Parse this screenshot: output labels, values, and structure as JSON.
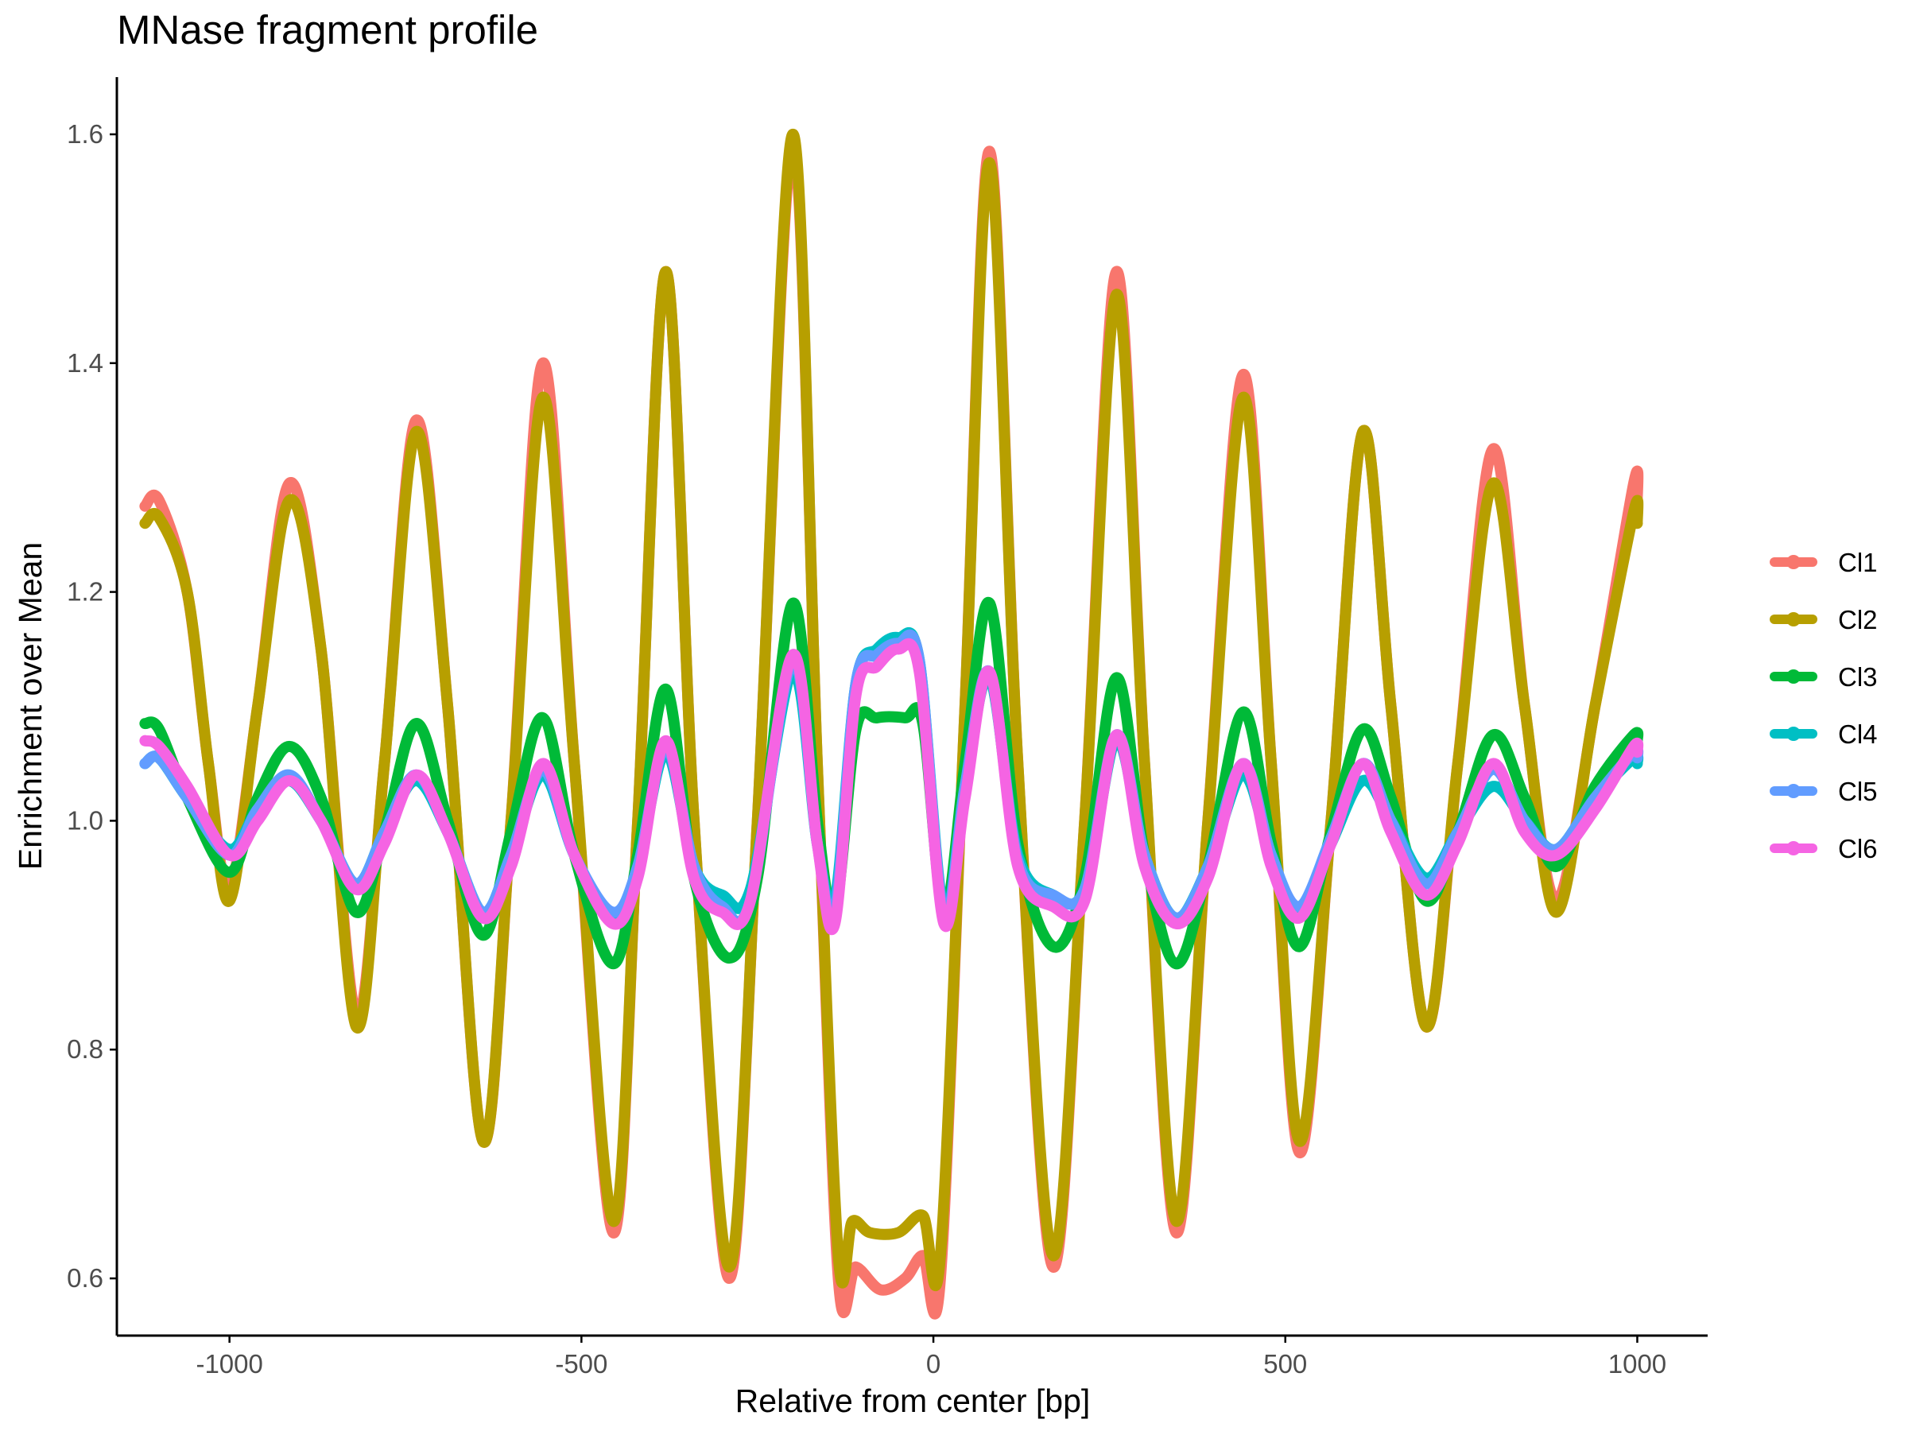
{
  "chart_data": {
    "type": "line",
    "title": "MNase fragment profile",
    "xlabel": "Relative from center [bp]",
    "ylabel": "Enrichment over Mean",
    "xlim": [
      -1160,
      1100
    ],
    "ylim": [
      0.55,
      1.65
    ],
    "xticks": [
      -1000,
      -500,
      0,
      500,
      1000
    ],
    "yticks": [
      0.6,
      0.8,
      1.0,
      1.2,
      1.4,
      1.6
    ],
    "grid": false,
    "legend_position": "right",
    "series": [
      {
        "name": "Cl1",
        "color": "#F8766D",
        "points": [
          [
            -1120,
            1.275
          ],
          [
            -1100,
            1.28
          ],
          [
            -1060,
            1.2
          ],
          [
            -1030,
            1.05
          ],
          [
            -1000,
            0.94
          ],
          [
            -960,
            1.1
          ],
          [
            -915,
            1.295
          ],
          [
            -870,
            1.15
          ],
          [
            -820,
            0.83
          ],
          [
            -780,
            1.05
          ],
          [
            -735,
            1.35
          ],
          [
            -690,
            1.1
          ],
          [
            -640,
            0.72
          ],
          [
            -600,
            1.0
          ],
          [
            -555,
            1.4
          ],
          [
            -510,
            1.05
          ],
          [
            -455,
            0.64
          ],
          [
            -420,
            1.0
          ],
          [
            -380,
            1.48
          ],
          [
            -340,
            1.0
          ],
          [
            -290,
            0.6
          ],
          [
            -250,
            1.0
          ],
          [
            -200,
            1.59
          ],
          [
            -165,
            1.05
          ],
          [
            -135,
            0.6
          ],
          [
            -110,
            0.61
          ],
          [
            -75,
            0.59
          ],
          [
            -40,
            0.6
          ],
          [
            -15,
            0.62
          ],
          [
            10,
            0.6
          ],
          [
            45,
            1.1
          ],
          [
            80,
            1.585
          ],
          [
            120,
            1.05
          ],
          [
            170,
            0.61
          ],
          [
            215,
            1.0
          ],
          [
            260,
            1.48
          ],
          [
            300,
            1.05
          ],
          [
            345,
            0.64
          ],
          [
            390,
            1.0
          ],
          [
            440,
            1.39
          ],
          [
            480,
            1.05
          ],
          [
            520,
            0.71
          ],
          [
            565,
            1.0
          ],
          [
            610,
            1.34
          ],
          [
            650,
            1.1
          ],
          [
            700,
            0.82
          ],
          [
            745,
            1.05
          ],
          [
            795,
            1.325
          ],
          [
            840,
            1.1
          ],
          [
            885,
            0.93
          ],
          [
            940,
            1.1
          ],
          [
            995,
            1.295
          ],
          [
            1000,
            1.28
          ]
        ]
      },
      {
        "name": "Cl2",
        "color": "#B79F00",
        "points": [
          [
            -1120,
            1.26
          ],
          [
            -1100,
            1.265
          ],
          [
            -1060,
            1.2
          ],
          [
            -1030,
            1.05
          ],
          [
            -1000,
            0.93
          ],
          [
            -960,
            1.1
          ],
          [
            -915,
            1.28
          ],
          [
            -870,
            1.15
          ],
          [
            -820,
            0.82
          ],
          [
            -780,
            1.05
          ],
          [
            -735,
            1.34
          ],
          [
            -690,
            1.1
          ],
          [
            -640,
            0.72
          ],
          [
            -600,
            1.0
          ],
          [
            -555,
            1.37
          ],
          [
            -510,
            1.05
          ],
          [
            -455,
            0.65
          ],
          [
            -420,
            1.0
          ],
          [
            -380,
            1.48
          ],
          [
            -340,
            1.0
          ],
          [
            -290,
            0.61
          ],
          [
            -250,
            1.0
          ],
          [
            -200,
            1.6
          ],
          [
            -165,
            1.05
          ],
          [
            -135,
            0.62
          ],
          [
            -115,
            0.65
          ],
          [
            -90,
            0.64
          ],
          [
            -50,
            0.64
          ],
          [
            -15,
            0.655
          ],
          [
            10,
            0.62
          ],
          [
            45,
            1.1
          ],
          [
            80,
            1.575
          ],
          [
            120,
            1.05
          ],
          [
            170,
            0.62
          ],
          [
            215,
            1.0
          ],
          [
            260,
            1.46
          ],
          [
            300,
            1.05
          ],
          [
            345,
            0.65
          ],
          [
            390,
            1.0
          ],
          [
            440,
            1.37
          ],
          [
            480,
            1.05
          ],
          [
            520,
            0.72
          ],
          [
            565,
            1.0
          ],
          [
            610,
            1.34
          ],
          [
            650,
            1.1
          ],
          [
            700,
            0.82
          ],
          [
            745,
            1.05
          ],
          [
            795,
            1.295
          ],
          [
            840,
            1.1
          ],
          [
            885,
            0.92
          ],
          [
            940,
            1.1
          ],
          [
            995,
            1.27
          ],
          [
            1000,
            1.26
          ]
        ]
      },
      {
        "name": "Cl3",
        "color": "#00BA38",
        "points": [
          [
            -1120,
            1.085
          ],
          [
            -1100,
            1.08
          ],
          [
            -1060,
            1.02
          ],
          [
            -1000,
            0.955
          ],
          [
            -960,
            1.02
          ],
          [
            -915,
            1.065
          ],
          [
            -870,
            1.02
          ],
          [
            -820,
            0.92
          ],
          [
            -780,
            0.99
          ],
          [
            -735,
            1.085
          ],
          [
            -690,
            1.0
          ],
          [
            -640,
            0.9
          ],
          [
            -600,
            0.99
          ],
          [
            -555,
            1.09
          ],
          [
            -510,
            0.97
          ],
          [
            -455,
            0.875
          ],
          [
            -420,
            0.97
          ],
          [
            -380,
            1.115
          ],
          [
            -340,
            0.95
          ],
          [
            -290,
            0.88
          ],
          [
            -250,
            0.95
          ],
          [
            -200,
            1.19
          ],
          [
            -165,
            1.0
          ],
          [
            -140,
            0.92
          ],
          [
            -110,
            1.08
          ],
          [
            -80,
            1.09
          ],
          [
            -40,
            1.09
          ],
          [
            -15,
            1.085
          ],
          [
            15,
            0.92
          ],
          [
            45,
            1.05
          ],
          [
            80,
            1.19
          ],
          [
            120,
            0.98
          ],
          [
            170,
            0.89
          ],
          [
            215,
            0.95
          ],
          [
            260,
            1.125
          ],
          [
            300,
            0.97
          ],
          [
            345,
            0.875
          ],
          [
            390,
            0.96
          ],
          [
            440,
            1.095
          ],
          [
            480,
            0.98
          ],
          [
            520,
            0.89
          ],
          [
            565,
            0.99
          ],
          [
            610,
            1.08
          ],
          [
            650,
            1.02
          ],
          [
            700,
            0.93
          ],
          [
            745,
            0.99
          ],
          [
            795,
            1.075
          ],
          [
            840,
            1.02
          ],
          [
            885,
            0.96
          ],
          [
            940,
            1.03
          ],
          [
            995,
            1.075
          ],
          [
            1000,
            1.07
          ]
        ]
      },
      {
        "name": "Cl4",
        "color": "#00BFC4",
        "points": [
          [
            -1120,
            1.05
          ],
          [
            -1100,
            1.055
          ],
          [
            -1060,
            1.02
          ],
          [
            -1000,
            0.975
          ],
          [
            -960,
            1.01
          ],
          [
            -915,
            1.035
          ],
          [
            -870,
            1.0
          ],
          [
            -820,
            0.945
          ],
          [
            -780,
            0.99
          ],
          [
            -735,
            1.035
          ],
          [
            -690,
            0.99
          ],
          [
            -640,
            0.92
          ],
          [
            -600,
            0.97
          ],
          [
            -555,
            1.04
          ],
          [
            -510,
            0.97
          ],
          [
            -455,
            0.915
          ],
          [
            -420,
            0.96
          ],
          [
            -380,
            1.06
          ],
          [
            -340,
            0.96
          ],
          [
            -300,
            0.935
          ],
          [
            -260,
            0.94
          ],
          [
            -200,
            1.13
          ],
          [
            -165,
            0.98
          ],
          [
            -140,
            0.93
          ],
          [
            -110,
            1.12
          ],
          [
            -80,
            1.15
          ],
          [
            -50,
            1.16
          ],
          [
            -20,
            1.14
          ],
          [
            15,
            0.92
          ],
          [
            45,
            1.03
          ],
          [
            80,
            1.125
          ],
          [
            120,
            0.97
          ],
          [
            170,
            0.935
          ],
          [
            215,
            0.94
          ],
          [
            260,
            1.07
          ],
          [
            300,
            0.97
          ],
          [
            345,
            0.915
          ],
          [
            390,
            0.96
          ],
          [
            440,
            1.04
          ],
          [
            480,
            0.97
          ],
          [
            520,
            0.92
          ],
          [
            565,
            0.98
          ],
          [
            610,
            1.035
          ],
          [
            650,
            1.0
          ],
          [
            700,
            0.95
          ],
          [
            745,
            0.99
          ],
          [
            795,
            1.03
          ],
          [
            840,
            1.0
          ],
          [
            885,
            0.975
          ],
          [
            940,
            1.02
          ],
          [
            995,
            1.055
          ],
          [
            1000,
            1.05
          ]
        ]
      },
      {
        "name": "Cl5",
        "color": "#619CFF",
        "points": [
          [
            -1120,
            1.05
          ],
          [
            -1100,
            1.055
          ],
          [
            -1060,
            1.02
          ],
          [
            -1000,
            0.97
          ],
          [
            -960,
            1.01
          ],
          [
            -915,
            1.04
          ],
          [
            -870,
            1.0
          ],
          [
            -820,
            0.945
          ],
          [
            -780,
            0.99
          ],
          [
            -735,
            1.04
          ],
          [
            -690,
            0.99
          ],
          [
            -640,
            0.92
          ],
          [
            -600,
            0.97
          ],
          [
            -555,
            1.045
          ],
          [
            -510,
            0.97
          ],
          [
            -455,
            0.92
          ],
          [
            -420,
            0.96
          ],
          [
            -380,
            1.065
          ],
          [
            -340,
            0.96
          ],
          [
            -300,
            0.925
          ],
          [
            -260,
            0.93
          ],
          [
            -200,
            1.14
          ],
          [
            -165,
            0.98
          ],
          [
            -140,
            0.92
          ],
          [
            -110,
            1.12
          ],
          [
            -80,
            1.145
          ],
          [
            -50,
            1.155
          ],
          [
            -20,
            1.14
          ],
          [
            15,
            0.915
          ],
          [
            45,
            1.03
          ],
          [
            80,
            1.13
          ],
          [
            120,
            0.965
          ],
          [
            170,
            0.935
          ],
          [
            215,
            0.94
          ],
          [
            260,
            1.075
          ],
          [
            300,
            0.97
          ],
          [
            345,
            0.915
          ],
          [
            390,
            0.96
          ],
          [
            440,
            1.05
          ],
          [
            480,
            0.97
          ],
          [
            520,
            0.925
          ],
          [
            565,
            0.985
          ],
          [
            610,
            1.05
          ],
          [
            650,
            1.0
          ],
          [
            700,
            0.945
          ],
          [
            745,
            0.99
          ],
          [
            795,
            1.045
          ],
          [
            840,
            1.0
          ],
          [
            885,
            0.975
          ],
          [
            940,
            1.02
          ],
          [
            995,
            1.06
          ],
          [
            1000,
            1.055
          ]
        ]
      },
      {
        "name": "Cl6",
        "color": "#F564E3",
        "points": [
          [
            -1120,
            1.07
          ],
          [
            -1100,
            1.065
          ],
          [
            -1060,
            1.03
          ],
          [
            -1000,
            0.97
          ],
          [
            -960,
            1.0
          ],
          [
            -915,
            1.035
          ],
          [
            -870,
            1.0
          ],
          [
            -820,
            0.94
          ],
          [
            -780,
            0.98
          ],
          [
            -735,
            1.04
          ],
          [
            -690,
            0.99
          ],
          [
            -640,
            0.915
          ],
          [
            -600,
            0.96
          ],
          [
            -555,
            1.05
          ],
          [
            -510,
            0.97
          ],
          [
            -455,
            0.91
          ],
          [
            -420,
            0.95
          ],
          [
            -380,
            1.07
          ],
          [
            -340,
            0.95
          ],
          [
            -300,
            0.92
          ],
          [
            -260,
            0.93
          ],
          [
            -200,
            1.145
          ],
          [
            -165,
            0.98
          ],
          [
            -140,
            0.91
          ],
          [
            -110,
            1.11
          ],
          [
            -80,
            1.135
          ],
          [
            -50,
            1.15
          ],
          [
            -20,
            1.13
          ],
          [
            15,
            0.91
          ],
          [
            45,
            1.02
          ],
          [
            80,
            1.13
          ],
          [
            120,
            0.96
          ],
          [
            170,
            0.925
          ],
          [
            215,
            0.93
          ],
          [
            260,
            1.075
          ],
          [
            300,
            0.96
          ],
          [
            345,
            0.91
          ],
          [
            390,
            0.95
          ],
          [
            440,
            1.05
          ],
          [
            480,
            0.96
          ],
          [
            520,
            0.915
          ],
          [
            565,
            0.98
          ],
          [
            610,
            1.05
          ],
          [
            650,
            0.99
          ],
          [
            700,
            0.935
          ],
          [
            745,
            0.98
          ],
          [
            795,
            1.05
          ],
          [
            840,
            0.99
          ],
          [
            885,
            0.97
          ],
          [
            940,
            1.01
          ],
          [
            995,
            1.065
          ],
          [
            1000,
            1.06
          ]
        ]
      }
    ]
  }
}
